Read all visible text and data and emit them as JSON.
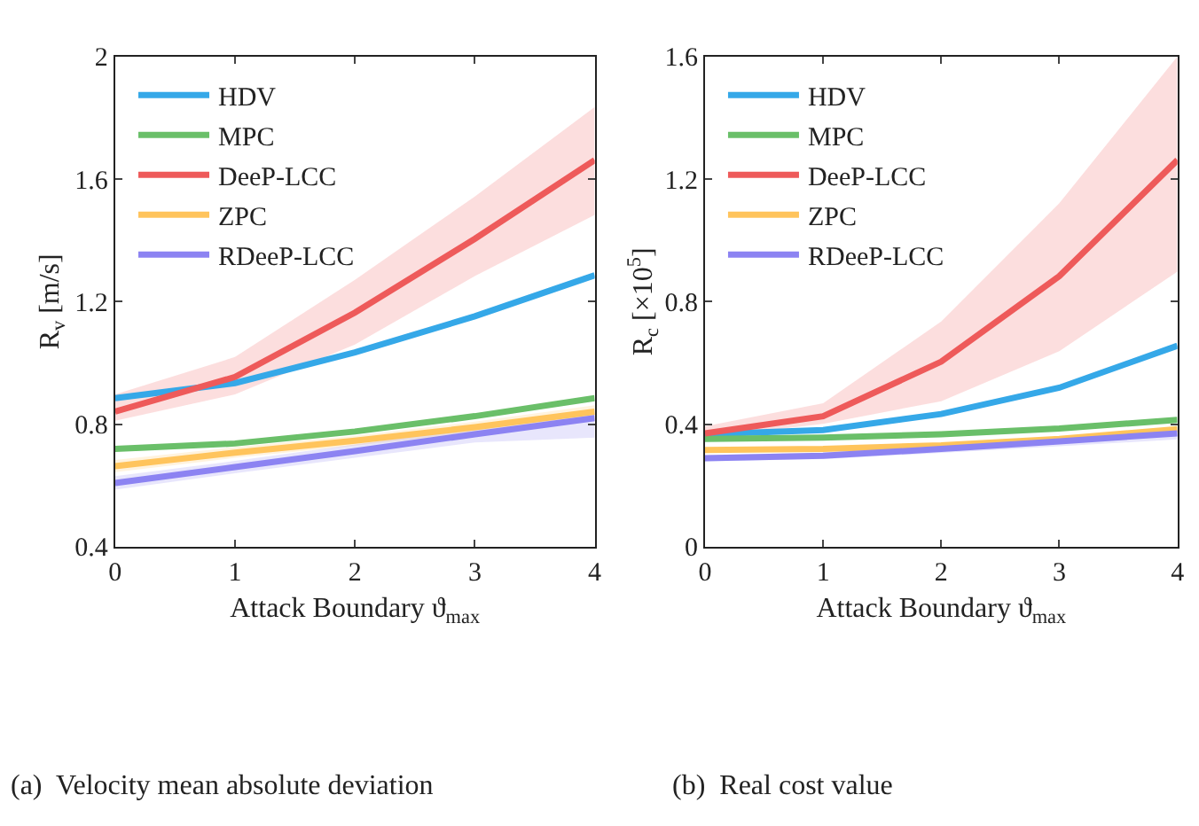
{
  "chart_data": [
    {
      "type": "line",
      "xlabel": "Attack Boundary ϑ$_{max}$",
      "ylabel": "R$_{v}$ [m/s]",
      "x": [
        0,
        1,
        2,
        3,
        4
      ],
      "xlim": [
        0,
        4
      ],
      "xticks": [
        0,
        1,
        2,
        3,
        4
      ],
      "ylim": [
        0.4,
        2
      ],
      "yticks": [
        0.4,
        0.8,
        1.2,
        1.6,
        2
      ],
      "legend": "top left",
      "annotations": [
        "(a)  Velocity mean absolute deviation"
      ],
      "series": [
        {
          "name": "HDV",
          "color": "#35a8e8",
          "values": [
            0.885,
            0.934,
            1.034,
            1.152,
            1.286
          ]
        },
        {
          "name": "MPC",
          "color": "#6abf69",
          "values": [
            0.719,
            0.737,
            0.776,
            0.826,
            0.885
          ]
        },
        {
          "name": "DeeP-LCC",
          "color": "#ee5a5a",
          "values": [
            0.841,
            0.954,
            1.164,
            1.405,
            1.662
          ],
          "lower": [
            0.811,
            0.897,
            1.06,
            1.283,
            1.483
          ],
          "upper": [
            0.897,
            1.019,
            1.271,
            1.543,
            1.835
          ]
        },
        {
          "name": "ZPC",
          "color": "#ffc45c",
          "values": [
            0.663,
            0.707,
            0.746,
            0.79,
            0.841
          ],
          "lower": [
            0.643,
            0.69,
            0.73,
            0.772,
            0.815
          ],
          "upper": [
            0.683,
            0.725,
            0.762,
            0.808,
            0.862
          ]
        },
        {
          "name": "RDeeP-LCC",
          "color": "#8c83f2",
          "values": [
            0.608,
            0.66,
            0.712,
            0.767,
            0.82
          ],
          "lower": [
            0.586,
            0.64,
            0.69,
            0.74,
            0.756
          ],
          "upper": [
            0.63,
            0.68,
            0.734,
            0.79,
            0.845
          ]
        }
      ]
    },
    {
      "type": "line",
      "xlabel": "Attack Boundary ϑ$_{max}$",
      "ylabel": "R$_{c}$ [×10$^{5}$]",
      "x": [
        0,
        1,
        2,
        3,
        4
      ],
      "xlim": [
        0,
        4
      ],
      "xticks": [
        0,
        1,
        2,
        3,
        4
      ],
      "ylim": [
        0,
        1.6
      ],
      "yticks": [
        0,
        0.4,
        0.8,
        1.2,
        1.6
      ],
      "legend": "top left",
      "annotations": [
        "(b)  Real cost value"
      ],
      "series": [
        {
          "name": "HDV",
          "color": "#35a8e8",
          "values": [
            0.367,
            0.381,
            0.433,
            0.519,
            0.656
          ]
        },
        {
          "name": "MPC",
          "color": "#6abf69",
          "values": [
            0.352,
            0.356,
            0.367,
            0.386,
            0.414
          ]
        },
        {
          "name": "DeeP-LCC",
          "color": "#ee5a5a",
          "values": [
            0.37,
            0.426,
            0.604,
            0.883,
            1.262
          ],
          "lower": [
            0.356,
            0.401,
            0.475,
            0.638,
            0.898
          ],
          "upper": [
            0.393,
            0.468,
            0.735,
            1.121,
            1.6
          ]
        },
        {
          "name": "ZPC",
          "color": "#ffc45c",
          "values": [
            0.316,
            0.319,
            0.331,
            0.352,
            0.384
          ]
        },
        {
          "name": "RDeeP-LCC",
          "color": "#8c83f2",
          "values": [
            0.289,
            0.297,
            0.319,
            0.344,
            0.37
          ],
          "lower": [
            0.279,
            0.286,
            0.306,
            0.328,
            0.35
          ],
          "upper": [
            0.299,
            0.308,
            0.332,
            0.36,
            0.39
          ]
        }
      ]
    }
  ]
}
